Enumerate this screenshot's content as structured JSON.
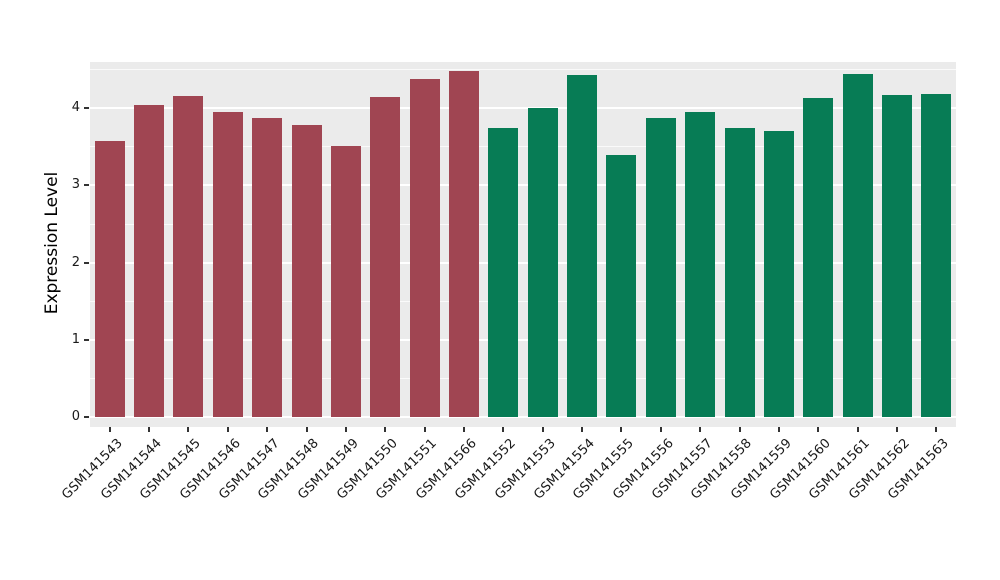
{
  "chart_data": {
    "type": "bar",
    "title": "",
    "xlabel": "",
    "ylabel": "Expression Level",
    "ylim": [
      0,
      4.6
    ],
    "yticks": [
      0,
      1,
      2,
      3,
      4
    ],
    "grid": "white major and minor gridlines on gray panel",
    "legend": "none",
    "panel_background": "#EBEBEB",
    "categories": [
      "GSM141543",
      "GSM141544",
      "GSM141545",
      "GSM141546",
      "GSM141547",
      "GSM141548",
      "GSM141549",
      "GSM141550",
      "GSM141551",
      "GSM141566",
      "GSM141552",
      "GSM141553",
      "GSM141554",
      "GSM141555",
      "GSM141556",
      "GSM141557",
      "GSM141558",
      "GSM141559",
      "GSM141560",
      "GSM141561",
      "GSM141562",
      "GSM141563"
    ],
    "values": [
      3.57,
      4.04,
      4.16,
      3.95,
      3.88,
      3.79,
      3.51,
      4.15,
      4.38,
      4.48,
      3.74,
      4.0,
      4.43,
      3.39,
      3.87,
      3.95,
      3.74,
      3.71,
      4.13,
      4.45,
      4.17,
      4.18
    ],
    "bar_group": [
      0,
      0,
      0,
      0,
      0,
      0,
      0,
      0,
      0,
      0,
      1,
      1,
      1,
      1,
      1,
      1,
      1,
      1,
      1,
      1,
      1,
      1
    ],
    "group_colors": [
      "#A04552",
      "#077C55"
    ]
  }
}
